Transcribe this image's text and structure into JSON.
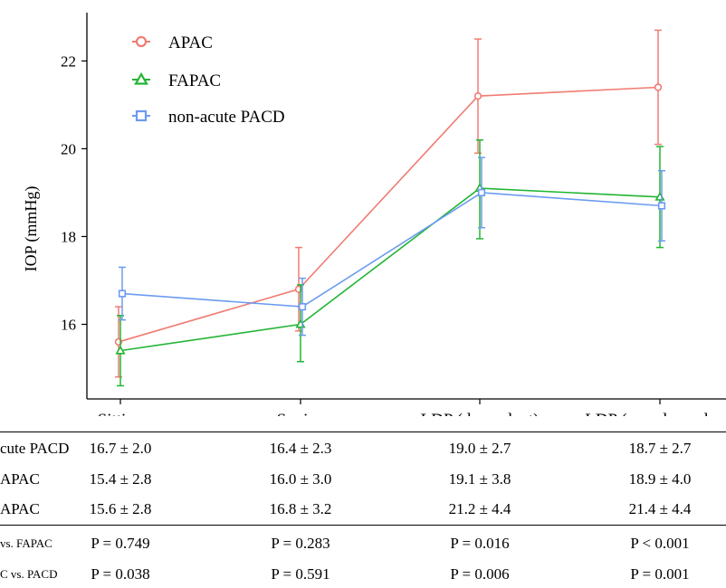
{
  "chart_data": {
    "type": "line",
    "title": "",
    "xlabel": "",
    "ylabel": "IOP (mmHg)",
    "categories": [
      "Sitting",
      "Supine",
      "LDP (dependent)",
      "LDP (non-dependent)"
    ],
    "yticks": [
      16,
      18,
      20,
      22
    ],
    "ylim": [
      14.3,
      23.1
    ],
    "grid": false,
    "legend_position": "top-left",
    "series": [
      {
        "name": "APAC",
        "color": "#F07C73",
        "marker": "circle",
        "values": [
          15.6,
          16.8,
          21.2,
          21.4
        ],
        "err_low": [
          14.8,
          15.85,
          19.9,
          20.1
        ],
        "err_high": [
          16.4,
          17.75,
          22.5,
          22.7
        ]
      },
      {
        "name": "FAPAC",
        "color": "#22B534",
        "marker": "triangle",
        "values": [
          15.4,
          16.0,
          19.1,
          18.9
        ],
        "err_low": [
          14.6,
          15.15,
          17.95,
          17.75
        ],
        "err_high": [
          16.2,
          16.9,
          20.2,
          20.05
        ]
      },
      {
        "name": "non-acute PACD",
        "color": "#6C9BEF",
        "marker": "square",
        "values": [
          16.7,
          16.4,
          19.0,
          18.7
        ],
        "err_low": [
          16.1,
          15.75,
          18.2,
          17.9
        ],
        "err_high": [
          17.3,
          17.05,
          19.8,
          19.5
        ]
      }
    ]
  },
  "table": {
    "rows": [
      {
        "label": "cute PACD",
        "cells": [
          "16.7 ± 2.0",
          "16.4 ± 2.3",
          "19.0 ± 2.7",
          "18.7 ± 2.7"
        ]
      },
      {
        "label": "APAC",
        "cells": [
          "15.4 ± 2.8",
          "16.0 ± 3.0",
          "19.1 ± 3.8",
          "18.9 ± 4.0"
        ]
      },
      {
        "label": "APAC",
        "cells": [
          "15.6 ± 2.8",
          "16.8 ± 3.2",
          "21.2 ± 4.4",
          "21.4 ± 4.4"
        ]
      }
    ],
    "p_rows": [
      {
        "label": "vs. FAPAC",
        "cells": [
          "P = 0.749",
          "P = 0.283",
          "P = 0.016",
          "P < 0.001"
        ]
      },
      {
        "label": "C vs. PACD",
        "cells": [
          "P = 0.038",
          "P = 0.591",
          "P = 0.006",
          "P = 0.001"
        ]
      }
    ]
  }
}
